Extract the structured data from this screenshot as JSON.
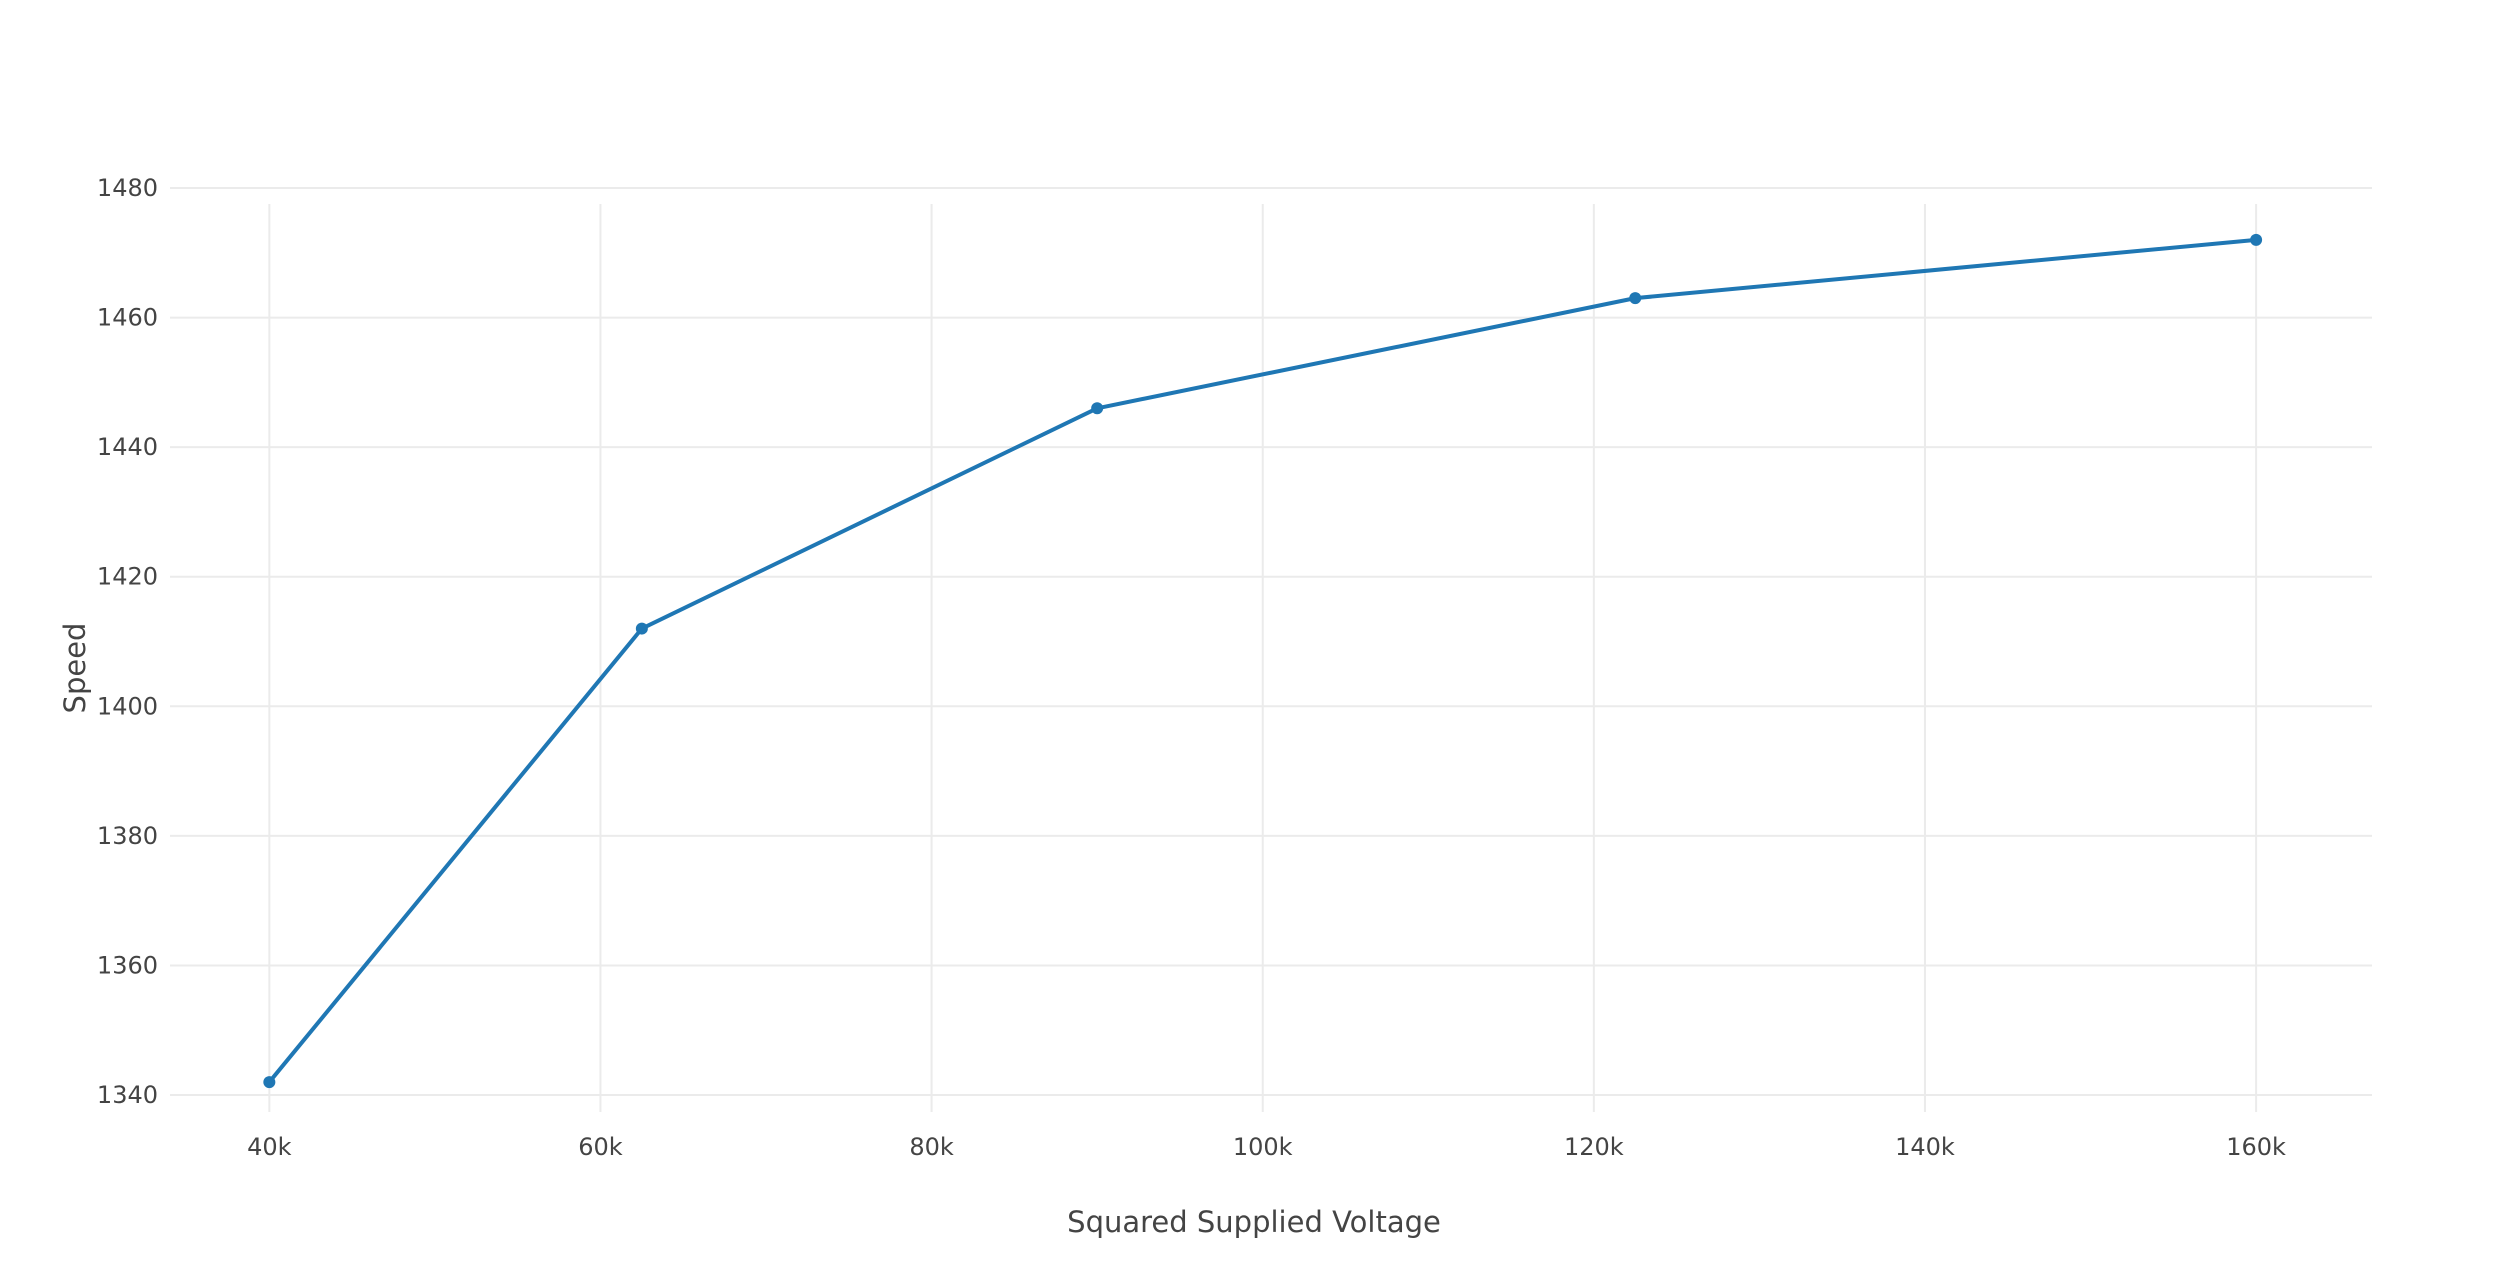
{
  "chart_data": {
    "type": "line",
    "title": "",
    "xlabel": "Squared Supplied Voltage",
    "ylabel": "Speed",
    "x_ticks": [
      {
        "value": 40000,
        "label": "40k"
      },
      {
        "value": 60000,
        "label": "60k"
      },
      {
        "value": 80000,
        "label": "80k"
      },
      {
        "value": 100000,
        "label": "100k"
      },
      {
        "value": 120000,
        "label": "120k"
      },
      {
        "value": 140000,
        "label": "140k"
      },
      {
        "value": 160000,
        "label": "160k"
      }
    ],
    "y_ticks": [
      {
        "value": 1340,
        "label": "1340"
      },
      {
        "value": 1360,
        "label": "1360"
      },
      {
        "value": 1380,
        "label": "1380"
      },
      {
        "value": 1400,
        "label": "1400"
      },
      {
        "value": 1420,
        "label": "1420"
      },
      {
        "value": 1440,
        "label": "1440"
      },
      {
        "value": 1460,
        "label": "1460"
      },
      {
        "value": 1480,
        "label": "1480"
      }
    ],
    "xlim": [
      34000,
      167000
    ],
    "ylim": [
      1338,
      1480
    ],
    "grid": true,
    "legend": false,
    "series": [
      {
        "color": "#1f77b4",
        "mode": "lines+markers",
        "points": [
          {
            "x": 40000,
            "y": 1342
          },
          {
            "x": 62500,
            "y": 1412
          },
          {
            "x": 90000,
            "y": 1446
          },
          {
            "x": 122500,
            "y": 1463
          },
          {
            "x": 160000,
            "y": 1472
          }
        ]
      }
    ]
  }
}
